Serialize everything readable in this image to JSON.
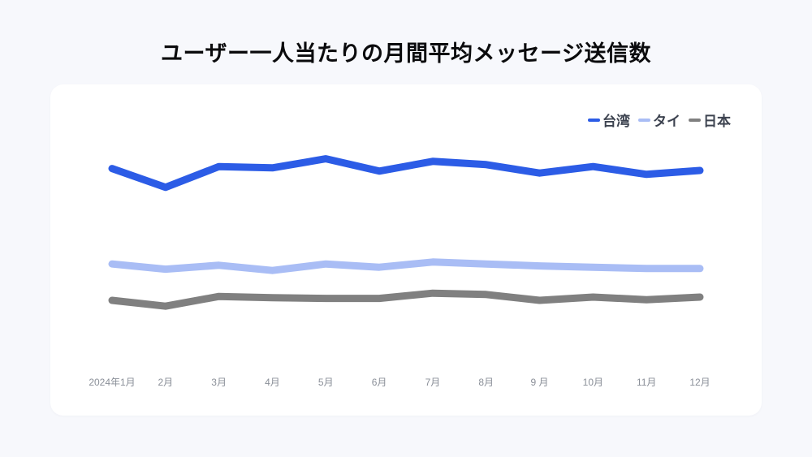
{
  "chart_data": {
    "type": "line",
    "title": "ユーザー一人当たりの月間平均メッセージ送信数",
    "xlabel": "",
    "ylabel": "",
    "categories": [
      "2024年1月",
      "2月",
      "3月",
      "4月",
      "5月",
      "6月",
      "7月",
      "8月",
      "9 月",
      "10月",
      "11月",
      "12月"
    ],
    "series": [
      {
        "name": "台湾",
        "color": "#2c5ce6",
        "values": [
          30.3,
          27.4,
          30.6,
          30.4,
          31.8,
          29.9,
          31.4,
          30.9,
          29.6,
          30.6,
          29.4,
          30.0
        ]
      },
      {
        "name": "タイ",
        "color": "#a9bdf5",
        "values": [
          15.6,
          14.8,
          15.4,
          14.6,
          15.6,
          15.1,
          15.9,
          15.6,
          15.3,
          15.1,
          14.9,
          14.9
        ]
      },
      {
        "name": "日本",
        "color": "#808080",
        "values": [
          10.0,
          9.1,
          10.6,
          10.4,
          10.3,
          10.3,
          11.1,
          10.9,
          10.0,
          10.5,
          10.1,
          10.5
        ]
      }
    ],
    "ylim": [
      0,
      35
    ],
    "grid": false,
    "y_axis_visible": false,
    "legend_position": "top-right"
  },
  "colors": {
    "background": "#f7f8fc",
    "card": "#ffffff",
    "title_text": "#0b0b0d",
    "legend_text": "#3d4350",
    "axis_label_text": "#8a8f98"
  }
}
